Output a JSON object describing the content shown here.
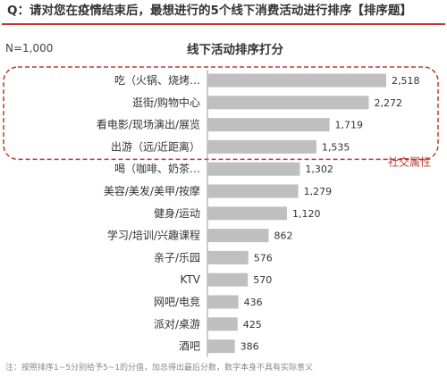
{
  "header": {
    "question": "Q：请对您在疫情结束后，最想进行的5个线下消费活动进行排序【排序题】"
  },
  "chart_data": {
    "type": "bar",
    "orientation": "horizontal",
    "title": "线下活动排序打分",
    "sample_size": "N=1,000",
    "categories": [
      "吃（火锅、烧烤…",
      "逛街/购物中心",
      "看电影/现场演出/展览",
      "出游（远/近距离）",
      "喝（咖啡、奶茶…",
      "美容/美发/美甲/按摩",
      "健身/运动",
      "学习/培训/兴趣课程",
      "亲子/乐园",
      "KTV",
      "网吧/电竞",
      "派对/桌游",
      "酒吧"
    ],
    "values": [
      2518,
      2272,
      1719,
      1535,
      1302,
      1279,
      1120,
      862,
      576,
      570,
      436,
      425,
      386
    ],
    "value_labels": [
      "2,518",
      "2,272",
      "1,719",
      "1,535",
      "1,302",
      "1,279",
      "1,120",
      "862",
      "576",
      "570",
      "436",
      "425",
      "386"
    ],
    "xlim": [
      0,
      2518
    ],
    "grid": false,
    "highlight": {
      "label": "社交属性",
      "categories": [
        0,
        1,
        2,
        3
      ],
      "color": "#c0392b"
    },
    "bar_color": "#bfbfbf"
  },
  "footnote": "注：按照排序1~5分别给予5~1的分值，加总得出最后分数，数字本身不具有实际意义"
}
